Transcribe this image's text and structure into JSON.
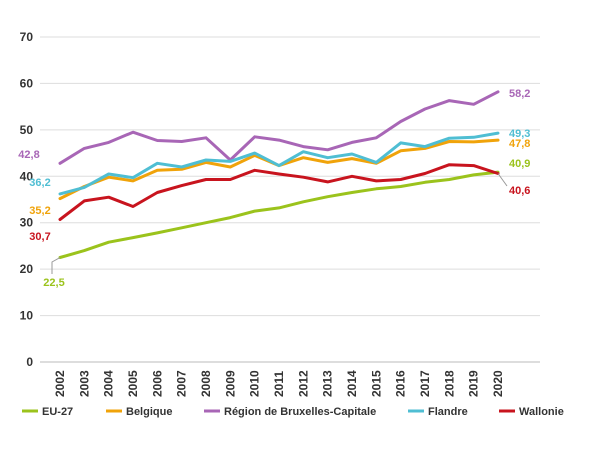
{
  "chart_data": {
    "type": "line",
    "x": [
      "2002",
      "2003",
      "2004",
      "2005",
      "2006",
      "2007",
      "2008",
      "2009",
      "2010",
      "2011",
      "2012",
      "2013",
      "2014",
      "2015",
      "2016",
      "2017",
      "2018",
      "2019",
      "2020"
    ],
    "ylim": [
      0,
      70
    ],
    "yticks": [
      0,
      10,
      20,
      30,
      40,
      50,
      60,
      70
    ],
    "grid": "horizontal",
    "legend_position": "bottom",
    "series": [
      {
        "name": "EU-27",
        "color": "#9bc31c",
        "values": [
          22.5,
          24.0,
          25.8,
          26.8,
          27.8,
          28.9,
          30.0,
          31.1,
          32.5,
          33.2,
          34.5,
          35.6,
          36.5,
          37.3,
          37.8,
          38.7,
          39.3,
          40.3,
          40.9
        ]
      },
      {
        "name": "Belgique",
        "color": "#f0a30a",
        "values": [
          35.2,
          37.8,
          39.8,
          39.0,
          41.3,
          41.5,
          43.0,
          42.0,
          44.5,
          42.3,
          44.0,
          43.0,
          43.8,
          42.8,
          45.5,
          46.0,
          47.5,
          47.4,
          47.8
        ]
      },
      {
        "name": "Région de Bruxelles-Capitale",
        "color": "#a866b6",
        "values": [
          42.8,
          46.0,
          47.3,
          49.5,
          47.7,
          47.5,
          48.3,
          43.5,
          48.5,
          47.8,
          46.4,
          45.7,
          47.3,
          48.3,
          51.8,
          54.5,
          56.3,
          55.5,
          58.2
        ]
      },
      {
        "name": "Flandre",
        "color": "#4fbed3",
        "values": [
          36.2,
          37.6,
          40.5,
          39.7,
          42.8,
          42.0,
          43.5,
          43.2,
          45.0,
          42.3,
          45.3,
          44.0,
          44.8,
          43.0,
          47.2,
          46.4,
          48.2,
          48.4,
          49.3
        ]
      },
      {
        "name": "Wallonie",
        "color": "#c8141e",
        "values": [
          30.7,
          34.7,
          35.5,
          33.5,
          36.5,
          38.0,
          39.3,
          39.3,
          41.3,
          40.5,
          39.8,
          38.8,
          40.0,
          39.0,
          39.3,
          40.6,
          42.5,
          42.3,
          40.6
        ]
      }
    ],
    "start_labels": [
      {
        "series": "EU-27",
        "text": "22,5"
      },
      {
        "series": "Belgique",
        "text": "35,2"
      },
      {
        "series": "Région de Bruxelles-Capitale",
        "text": "42,8"
      },
      {
        "series": "Flandre",
        "text": "36,2"
      },
      {
        "series": "Wallonie",
        "text": "30,7"
      }
    ],
    "end_labels": [
      {
        "series": "Région de Bruxelles-Capitale",
        "text": "58,2"
      },
      {
        "series": "Flandre",
        "text": "49,3"
      },
      {
        "series": "Belgique",
        "text": "47,8"
      },
      {
        "series": "EU-27",
        "text": "40,9"
      },
      {
        "series": "Wallonie",
        "text": "40,6"
      }
    ]
  }
}
